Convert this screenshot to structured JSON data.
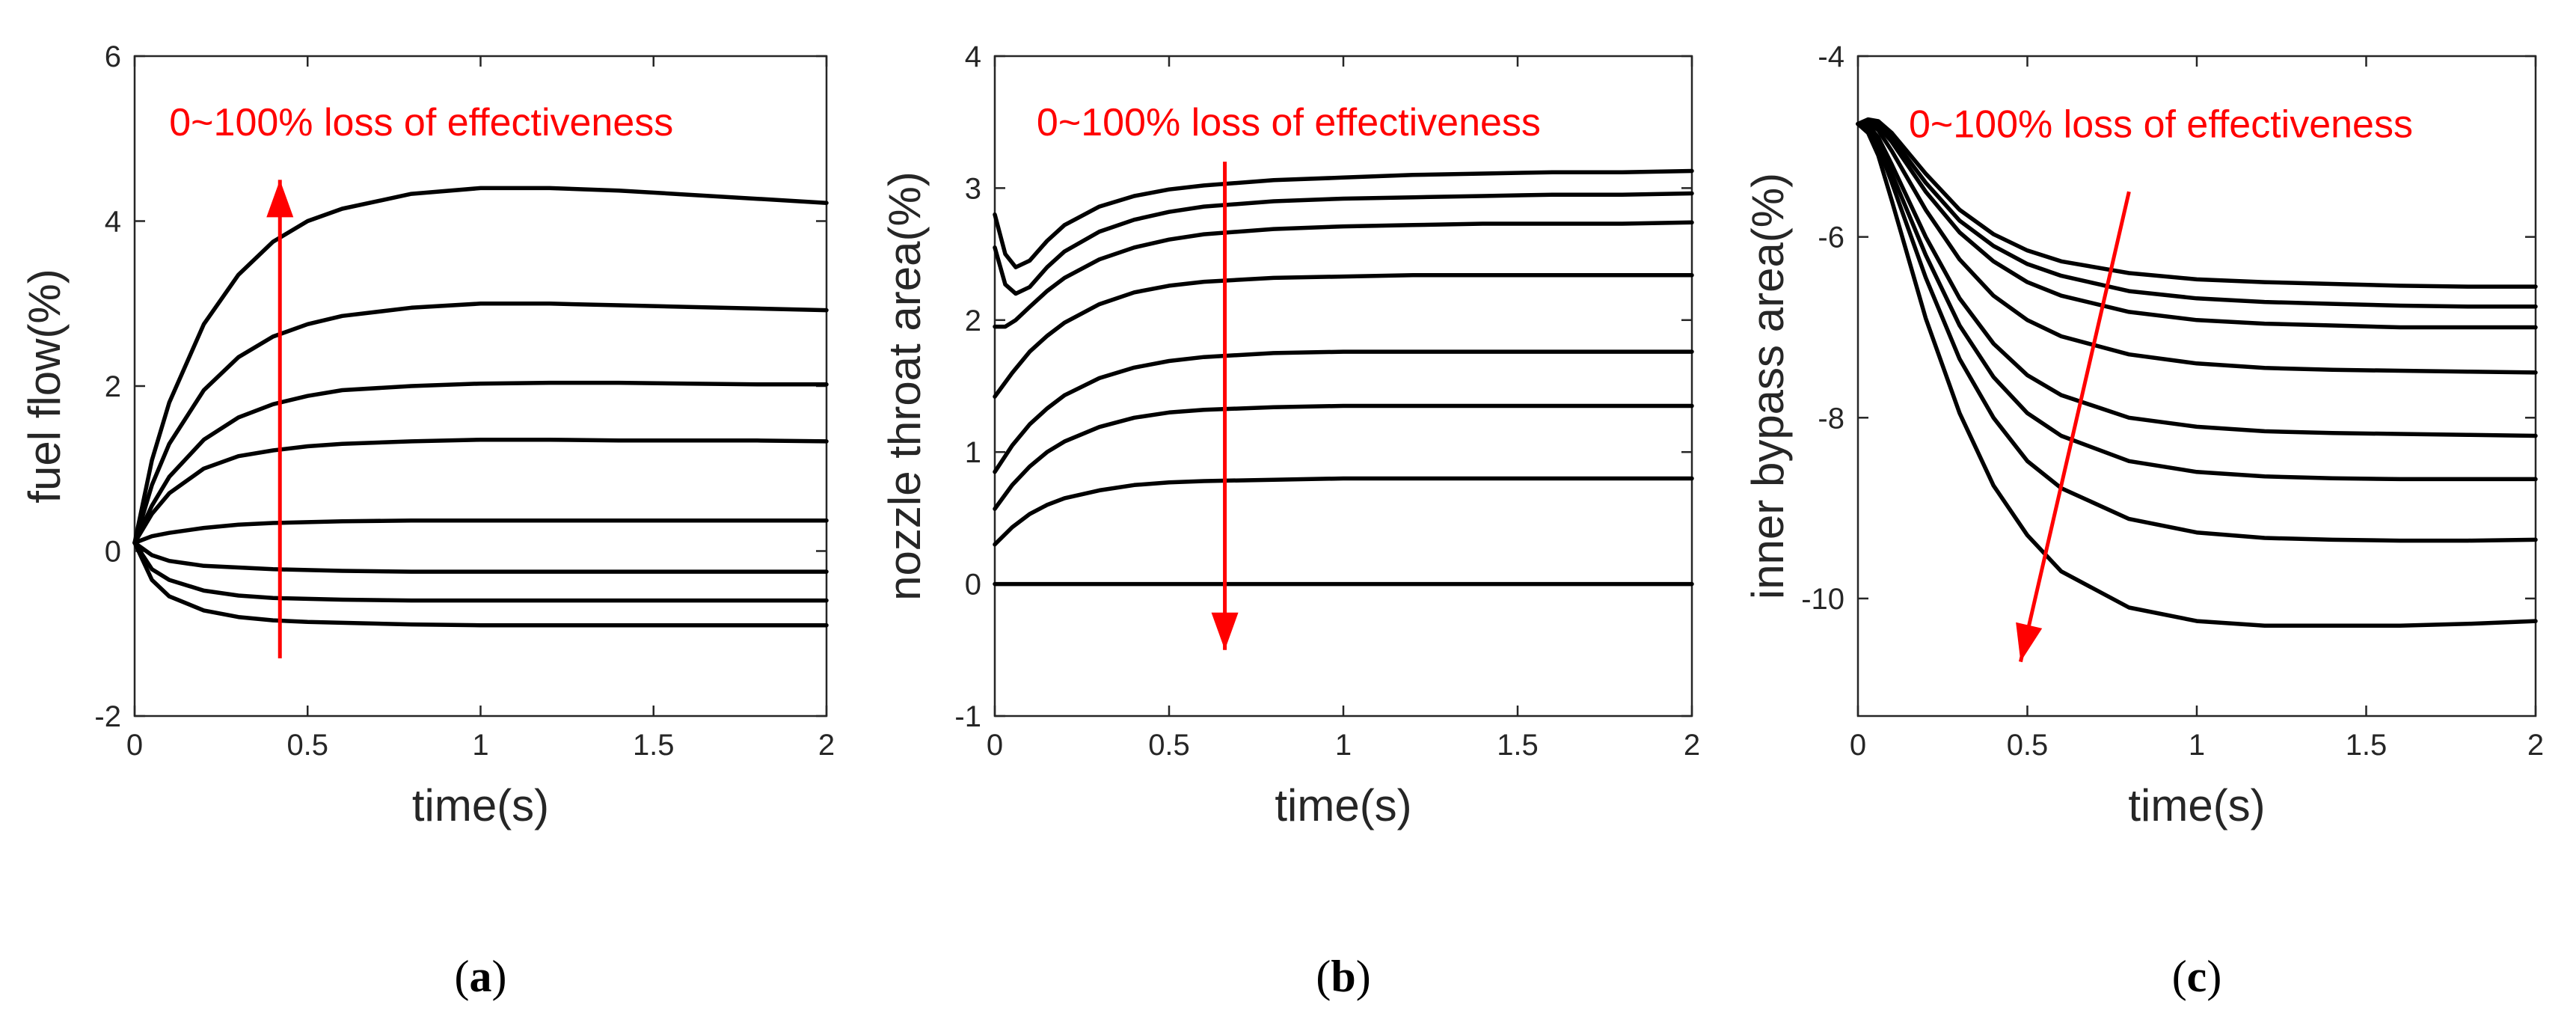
{
  "colors": {
    "line": "#000000",
    "annotation": "#ff0000",
    "axis": "#262626"
  },
  "chart_data": [
    {
      "type": "line",
      "panel": "a",
      "caption_letter": "a",
      "xlabel": "time(s)",
      "ylabel": "fuel flow(%)",
      "xlim": [
        0,
        2
      ],
      "ylim": [
        -2,
        6
      ],
      "xticks": [
        0,
        0.5,
        1,
        1.5,
        2
      ],
      "xtick_labels": [
        "0",
        "0.5",
        "1",
        "1.5",
        "2"
      ],
      "yticks": [
        -2,
        0,
        2,
        4,
        6
      ],
      "ytick_labels": [
        "-2",
        "0",
        "2",
        "4",
        "6"
      ],
      "annotation": {
        "text": "0~100% loss of effectiveness",
        "arrow_from": [
          0.42,
          -1.3
        ],
        "arrow_to": [
          0.42,
          4.5
        ],
        "text_at": [
          0.1,
          5.2
        ]
      },
      "series": [
        {
          "x": [
            0,
            0.05,
            0.1,
            0.2,
            0.3,
            0.4,
            0.5,
            0.6,
            0.8,
            1.0,
            1.2,
            1.4,
            1.6,
            1.8,
            2.0
          ],
          "values": [
            0.1,
            1.1,
            1.8,
            2.75,
            3.35,
            3.75,
            4.0,
            4.15,
            4.33,
            4.4,
            4.4,
            4.37,
            4.32,
            4.27,
            4.22
          ]
        },
        {
          "x": [
            0,
            0.05,
            0.1,
            0.2,
            0.3,
            0.4,
            0.5,
            0.6,
            0.8,
            1.0,
            1.2,
            1.4,
            1.6,
            1.8,
            2.0
          ],
          "values": [
            0.1,
            0.8,
            1.3,
            1.95,
            2.35,
            2.6,
            2.75,
            2.85,
            2.95,
            3.0,
            3.0,
            2.98,
            2.96,
            2.94,
            2.92
          ]
        },
        {
          "x": [
            0,
            0.05,
            0.1,
            0.2,
            0.3,
            0.4,
            0.5,
            0.6,
            0.8,
            1.0,
            1.2,
            1.4,
            1.6,
            1.8,
            2.0
          ],
          "values": [
            0.1,
            0.55,
            0.9,
            1.35,
            1.62,
            1.78,
            1.88,
            1.95,
            2.0,
            2.03,
            2.04,
            2.04,
            2.03,
            2.02,
            2.02
          ]
        },
        {
          "x": [
            0,
            0.05,
            0.1,
            0.2,
            0.3,
            0.4,
            0.5,
            0.6,
            0.8,
            1.0,
            1.2,
            1.4,
            1.6,
            1.8,
            2.0
          ],
          "values": [
            0.1,
            0.45,
            0.7,
            1.0,
            1.15,
            1.22,
            1.27,
            1.3,
            1.33,
            1.35,
            1.35,
            1.34,
            1.34,
            1.34,
            1.33
          ]
        },
        {
          "x": [
            0,
            0.05,
            0.1,
            0.2,
            0.3,
            0.4,
            0.5,
            0.6,
            0.8,
            1.0,
            1.2,
            1.4,
            1.6,
            1.8,
            2.0
          ],
          "values": [
            0.1,
            0.18,
            0.22,
            0.28,
            0.32,
            0.34,
            0.35,
            0.36,
            0.37,
            0.37,
            0.37,
            0.37,
            0.37,
            0.37,
            0.37
          ]
        },
        {
          "x": [
            0,
            0.05,
            0.1,
            0.2,
            0.3,
            0.4,
            0.5,
            0.6,
            0.8,
            1.0,
            1.2,
            1.4,
            1.6,
            1.8,
            2.0
          ],
          "values": [
            0.1,
            -0.05,
            -0.12,
            -0.18,
            -0.2,
            -0.22,
            -0.23,
            -0.24,
            -0.25,
            -0.25,
            -0.25,
            -0.25,
            -0.25,
            -0.25,
            -0.25
          ]
        },
        {
          "x": [
            0,
            0.05,
            0.1,
            0.2,
            0.3,
            0.4,
            0.5,
            0.6,
            0.8,
            1.0,
            1.2,
            1.4,
            1.6,
            1.8,
            2.0
          ],
          "values": [
            0.1,
            -0.22,
            -0.35,
            -0.48,
            -0.54,
            -0.57,
            -0.58,
            -0.59,
            -0.6,
            -0.6,
            -0.6,
            -0.6,
            -0.6,
            -0.6,
            -0.6
          ]
        },
        {
          "x": [
            0,
            0.05,
            0.1,
            0.2,
            0.3,
            0.4,
            0.5,
            0.6,
            0.8,
            1.0,
            1.2,
            1.4,
            1.6,
            1.8,
            2.0
          ],
          "values": [
            0.1,
            -0.35,
            -0.55,
            -0.72,
            -0.8,
            -0.84,
            -0.86,
            -0.87,
            -0.89,
            -0.9,
            -0.9,
            -0.9,
            -0.9,
            -0.9,
            -0.9
          ]
        }
      ]
    },
    {
      "type": "line",
      "panel": "b",
      "caption_letter": "b",
      "xlabel": "time(s)",
      "ylabel": "nozzle throat area(%)",
      "xlim": [
        0,
        2
      ],
      "ylim": [
        -1,
        4
      ],
      "xticks": [
        0,
        0.5,
        1,
        1.5,
        2
      ],
      "xtick_labels": [
        "0",
        "0.5",
        "1",
        "1.5",
        "2"
      ],
      "yticks": [
        -1,
        0,
        1,
        2,
        3,
        4
      ],
      "ytick_labels": [
        "-1",
        "0",
        "1",
        "2",
        "3",
        "4"
      ],
      "annotation": {
        "text": "0~100% loss of effectiveness",
        "arrow_from": [
          0.66,
          3.2
        ],
        "arrow_to": [
          0.66,
          -0.5
        ],
        "text_at": [
          0.12,
          3.5
        ]
      },
      "series": [
        {
          "x": [
            0,
            0.03,
            0.06,
            0.1,
            0.15,
            0.2,
            0.3,
            0.4,
            0.5,
            0.6,
            0.8,
            1.0,
            1.2,
            1.4,
            1.6,
            1.8,
            2.0
          ],
          "values": [
            2.8,
            2.5,
            2.4,
            2.45,
            2.6,
            2.72,
            2.86,
            2.94,
            2.99,
            3.02,
            3.06,
            3.08,
            3.1,
            3.11,
            3.12,
            3.12,
            3.13
          ]
        },
        {
          "x": [
            0,
            0.03,
            0.06,
            0.1,
            0.15,
            0.2,
            0.3,
            0.4,
            0.5,
            0.6,
            0.8,
            1.0,
            1.2,
            1.4,
            1.6,
            1.8,
            2.0
          ],
          "values": [
            2.55,
            2.27,
            2.2,
            2.25,
            2.4,
            2.52,
            2.67,
            2.76,
            2.82,
            2.86,
            2.9,
            2.92,
            2.93,
            2.94,
            2.95,
            2.95,
            2.96
          ]
        },
        {
          "x": [
            0,
            0.03,
            0.06,
            0.1,
            0.15,
            0.2,
            0.3,
            0.4,
            0.5,
            0.6,
            0.8,
            1.0,
            1.2,
            1.4,
            1.6,
            1.8,
            2.0
          ],
          "values": [
            1.95,
            1.95,
            2.0,
            2.1,
            2.22,
            2.32,
            2.46,
            2.55,
            2.61,
            2.65,
            2.69,
            2.71,
            2.72,
            2.73,
            2.73,
            2.73,
            2.74
          ]
        },
        {
          "x": [
            0,
            0.05,
            0.1,
            0.15,
            0.2,
            0.3,
            0.4,
            0.5,
            0.6,
            0.8,
            1.0,
            1.2,
            1.4,
            1.6,
            1.8,
            2.0
          ],
          "values": [
            1.42,
            1.6,
            1.76,
            1.88,
            1.98,
            2.12,
            2.21,
            2.26,
            2.29,
            2.32,
            2.33,
            2.34,
            2.34,
            2.34,
            2.34,
            2.34
          ]
        },
        {
          "x": [
            0,
            0.05,
            0.1,
            0.15,
            0.2,
            0.3,
            0.4,
            0.5,
            0.6,
            0.8,
            1.0,
            1.2,
            1.4,
            1.6,
            1.8,
            2.0
          ],
          "values": [
            0.85,
            1.05,
            1.21,
            1.33,
            1.43,
            1.56,
            1.64,
            1.69,
            1.72,
            1.75,
            1.76,
            1.76,
            1.76,
            1.76,
            1.76,
            1.76
          ]
        },
        {
          "x": [
            0,
            0.05,
            0.1,
            0.15,
            0.2,
            0.3,
            0.4,
            0.5,
            0.6,
            0.8,
            1.0,
            1.2,
            1.4,
            1.6,
            1.8,
            2.0
          ],
          "values": [
            0.57,
            0.75,
            0.89,
            1.0,
            1.08,
            1.19,
            1.26,
            1.3,
            1.32,
            1.34,
            1.35,
            1.35,
            1.35,
            1.35,
            1.35,
            1.35
          ]
        },
        {
          "x": [
            0,
            0.05,
            0.1,
            0.15,
            0.2,
            0.3,
            0.4,
            0.5,
            0.6,
            0.8,
            1.0,
            1.2,
            1.4,
            1.6,
            1.8,
            2.0
          ],
          "values": [
            0.3,
            0.43,
            0.53,
            0.6,
            0.65,
            0.71,
            0.75,
            0.77,
            0.78,
            0.79,
            0.8,
            0.8,
            0.8,
            0.8,
            0.8,
            0.8
          ]
        },
        {
          "x": [
            0,
            2.0
          ],
          "values": [
            0,
            0
          ]
        }
      ]
    },
    {
      "type": "line",
      "panel": "c",
      "caption_letter": "c",
      "xlabel": "time(s)",
      "ylabel": "inner bypass area(%)",
      "xlim": [
        0,
        2
      ],
      "ylim": [
        -11.3,
        -4
      ],
      "xticks": [
        0,
        0.5,
        1,
        1.5,
        2
      ],
      "xtick_labels": [
        "0",
        "0.5",
        "1",
        "1.5",
        "2"
      ],
      "yticks": [
        -10,
        -8,
        -6,
        -4
      ],
      "ytick_labels": [
        "-10",
        "-8",
        "-6",
        "-4"
      ],
      "annotation": {
        "text": "0~100% loss of effectiveness",
        "arrow_from": [
          0.8,
          -5.5
        ],
        "arrow_to": [
          0.48,
          -10.7
        ],
        "text_at": [
          0.15,
          -4.75
        ]
      },
      "series": [
        {
          "x": [
            0,
            0.03,
            0.06,
            0.1,
            0.2,
            0.3,
            0.4,
            0.5,
            0.6,
            0.8,
            1.0,
            1.2,
            1.4,
            1.6,
            1.8,
            2.0
          ],
          "values": [
            -4.75,
            -4.7,
            -4.72,
            -4.85,
            -5.3,
            -5.7,
            -5.97,
            -6.15,
            -6.27,
            -6.4,
            -6.47,
            -6.5,
            -6.52,
            -6.54,
            -6.55,
            -6.55
          ]
        },
        {
          "x": [
            0,
            0.03,
            0.06,
            0.1,
            0.2,
            0.3,
            0.4,
            0.5,
            0.6,
            0.8,
            1.0,
            1.2,
            1.4,
            1.6,
            1.8,
            2.0
          ],
          "values": [
            -4.75,
            -4.7,
            -4.74,
            -4.9,
            -5.4,
            -5.82,
            -6.1,
            -6.3,
            -6.43,
            -6.6,
            -6.68,
            -6.72,
            -6.74,
            -6.76,
            -6.77,
            -6.77
          ]
        },
        {
          "x": [
            0,
            0.03,
            0.06,
            0.1,
            0.2,
            0.3,
            0.4,
            0.5,
            0.6,
            0.8,
            1.0,
            1.2,
            1.4,
            1.6,
            1.8,
            2.0
          ],
          "values": [
            -4.75,
            -4.71,
            -4.77,
            -4.95,
            -5.5,
            -5.95,
            -6.27,
            -6.5,
            -6.65,
            -6.83,
            -6.92,
            -6.96,
            -6.98,
            -7.0,
            -7.0,
            -7.0
          ]
        },
        {
          "x": [
            0,
            0.03,
            0.06,
            0.1,
            0.2,
            0.3,
            0.4,
            0.5,
            0.6,
            0.8,
            1.0,
            1.2,
            1.4,
            1.6,
            1.8,
            2.0
          ],
          "values": [
            -4.75,
            -4.73,
            -4.82,
            -5.05,
            -5.7,
            -6.25,
            -6.65,
            -6.92,
            -7.1,
            -7.3,
            -7.4,
            -7.45,
            -7.47,
            -7.48,
            -7.49,
            -7.5
          ]
        },
        {
          "x": [
            0,
            0.03,
            0.06,
            0.1,
            0.2,
            0.3,
            0.4,
            0.5,
            0.6,
            0.8,
            1.0,
            1.2,
            1.4,
            1.6,
            1.8,
            2.0
          ],
          "values": [
            -4.75,
            -4.76,
            -4.9,
            -5.2,
            -6.0,
            -6.68,
            -7.18,
            -7.53,
            -7.75,
            -8.0,
            -8.1,
            -8.15,
            -8.17,
            -8.18,
            -8.19,
            -8.2
          ]
        },
        {
          "x": [
            0,
            0.03,
            0.06,
            0.1,
            0.2,
            0.3,
            0.4,
            0.5,
            0.6,
            0.8,
            1.0,
            1.2,
            1.4,
            1.6,
            1.8,
            2.0
          ],
          "values": [
            -4.75,
            -4.78,
            -4.95,
            -5.3,
            -6.2,
            -6.98,
            -7.55,
            -7.95,
            -8.2,
            -8.48,
            -8.6,
            -8.65,
            -8.67,
            -8.68,
            -8.68,
            -8.68
          ]
        },
        {
          "x": [
            0,
            0.03,
            0.06,
            0.1,
            0.2,
            0.3,
            0.4,
            0.5,
            0.6,
            0.8,
            1.0,
            1.2,
            1.4,
            1.6,
            1.8,
            2.0
          ],
          "values": [
            -4.75,
            -4.8,
            -5.0,
            -5.4,
            -6.45,
            -7.35,
            -8.0,
            -8.48,
            -8.78,
            -9.12,
            -9.27,
            -9.33,
            -9.35,
            -9.36,
            -9.36,
            -9.35
          ]
        },
        {
          "x": [
            0,
            0.03,
            0.06,
            0.1,
            0.2,
            0.3,
            0.4,
            0.5,
            0.6,
            0.8,
            1.0,
            1.2,
            1.4,
            1.6,
            1.8,
            2.0
          ],
          "values": [
            -4.75,
            -4.85,
            -5.1,
            -5.6,
            -6.9,
            -7.95,
            -8.75,
            -9.3,
            -9.7,
            -10.1,
            -10.25,
            -10.3,
            -10.3,
            -10.3,
            -10.28,
            -10.25
          ]
        }
      ]
    }
  ]
}
